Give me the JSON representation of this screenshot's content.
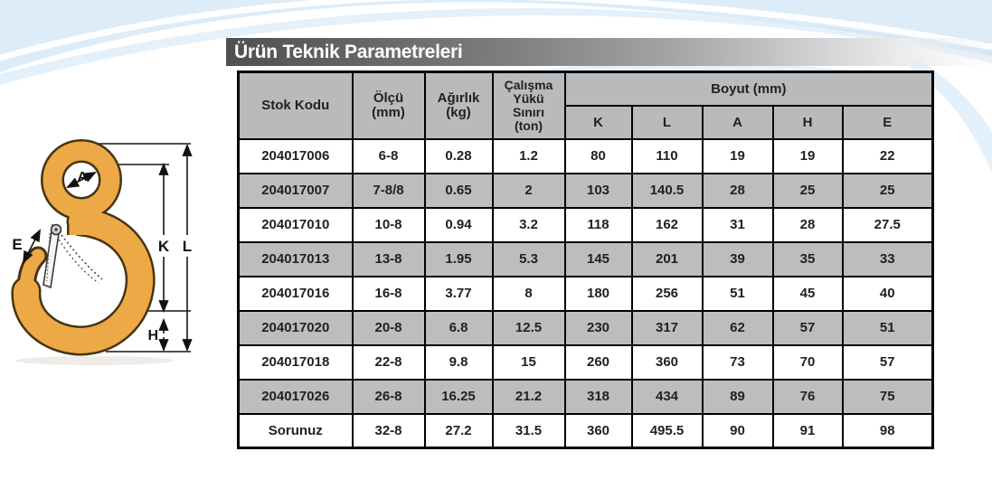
{
  "page": {
    "title": "Ürün Teknik Parametreleri"
  },
  "colors": {
    "hook_fill": "#eca945",
    "hook_outline": "#463414",
    "title_bar_dark": "#4f5052",
    "table_header_bg": "#b9babc",
    "table_alt_row_bg": "#bcbdbf",
    "banner_blue": "#d9eaf8"
  },
  "diagram": {
    "description": "eye-hook-technical-drawing",
    "labels": {
      "A": "A",
      "E": "E",
      "K": "K",
      "L": "L",
      "H": "H"
    }
  },
  "table": {
    "headers": {
      "stok_kodu": "Stok Kodu",
      "olcu": "Ölçü\n(mm)",
      "agirlik": "Ağırlık\n(kg)",
      "calisma": "Çalışma\nYükü\nSınırı\n(ton)",
      "boyut": "Boyut (mm)",
      "dims": [
        "K",
        "L",
        "A",
        "H",
        "E"
      ]
    },
    "row_keys": [
      "stok",
      "olcu",
      "agirlik",
      "cys",
      "k",
      "l",
      "a",
      "h",
      "e"
    ],
    "rows": [
      {
        "stok": "204017006",
        "olcu": "6-8",
        "agirlik": "0.28",
        "cys": "1.2",
        "k": "80",
        "l": "110",
        "a": "19",
        "h": "19",
        "e": "22"
      },
      {
        "stok": "204017007",
        "olcu": "7-8/8",
        "agirlik": "0.65",
        "cys": "2",
        "k": "103",
        "l": "140.5",
        "a": "28",
        "h": "25",
        "e": "25"
      },
      {
        "stok": "204017010",
        "olcu": "10-8",
        "agirlik": "0.94",
        "cys": "3.2",
        "k": "118",
        "l": "162",
        "a": "31",
        "h": "28",
        "e": "27.5"
      },
      {
        "stok": "204017013",
        "olcu": "13-8",
        "agirlik": "1.95",
        "cys": "5.3",
        "k": "145",
        "l": "201",
        "a": "39",
        "h": "35",
        "e": "33"
      },
      {
        "stok": "204017016",
        "olcu": "16-8",
        "agirlik": "3.77",
        "cys": "8",
        "k": "180",
        "l": "256",
        "a": "51",
        "h": "45",
        "e": "40"
      },
      {
        "stok": "204017020",
        "olcu": "20-8",
        "agirlik": "6.8",
        "cys": "12.5",
        "k": "230",
        "l": "317",
        "a": "62",
        "h": "57",
        "e": "51"
      },
      {
        "stok": "204017018",
        "olcu": "22-8",
        "agirlik": "9.8",
        "cys": "15",
        "k": "260",
        "l": "360",
        "a": "73",
        "h": "70",
        "e": "57"
      },
      {
        "stok": "204017026",
        "olcu": "26-8",
        "agirlik": "16.25",
        "cys": "21.2",
        "k": "318",
        "l": "434",
        "a": "89",
        "h": "76",
        "e": "75"
      },
      {
        "stok": "Sorunuz",
        "olcu": "32-8",
        "agirlik": "27.2",
        "cys": "31.5",
        "k": "360",
        "l": "495.5",
        "a": "90",
        "h": "91",
        "e": "98"
      }
    ]
  }
}
